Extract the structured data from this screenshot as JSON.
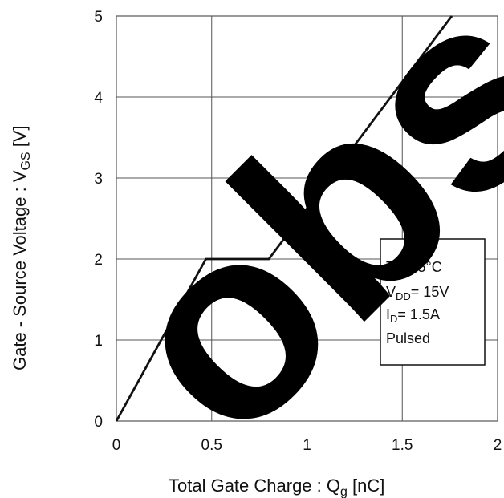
{
  "chart_data": {
    "type": "line",
    "title": "",
    "xlabel": "Total Gate Charge : Q",
    "xlabel_sub": "g",
    "xlabel_unit": " [nC]",
    "ylabel": "Gate - Source Voltage : V",
    "ylabel_sub": "GS",
    "ylabel_unit": " [V]",
    "xlim": [
      0,
      2
    ],
    "ylim": [
      0,
      5
    ],
    "grid": true,
    "x_ticks": [
      "0",
      "0.5",
      "1",
      "1.5",
      "2"
    ],
    "y_ticks": [
      "0",
      "1",
      "2",
      "3",
      "4",
      "5"
    ],
    "series": [
      {
        "x": [
          0,
          0.47,
          0.8,
          1.76
        ],
        "y": [
          0,
          2.0,
          2.0,
          5.0
        ]
      }
    ],
    "annotation": {
      "line1": "Ta=25°C",
      "line2_main": "V",
      "line2_sub": "DD",
      "line2_rest": "= 15V",
      "line3_main": "I",
      "line3_sub": "D",
      "line3_rest": "= 1.5A",
      "line4": "Pulsed"
    },
    "watermark": "obs"
  },
  "colors": {
    "line": "#111111",
    "grid": "#555555",
    "watermark": "#000000"
  }
}
